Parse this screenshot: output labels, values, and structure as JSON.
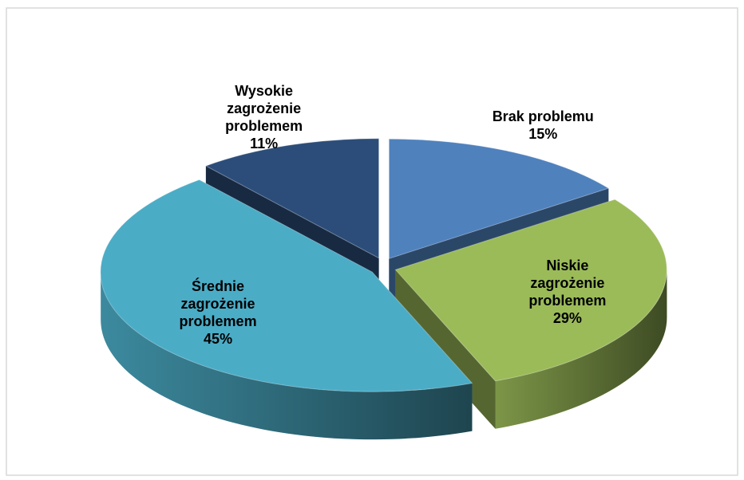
{
  "chart_data": {
    "type": "pie3d",
    "categories": [
      "Brak problemu",
      "Niskie zagrożenie problemem",
      "Średnie zagrożenie problemem",
      "Wysokie zagrożenie problemem"
    ],
    "values": [
      15,
      29,
      45,
      11
    ],
    "value_labels": [
      "15%",
      "29%",
      "45%",
      "11%"
    ],
    "colors": [
      "#4f81bd",
      "#9bbb59",
      "#4bacc6",
      "#2c4d79"
    ]
  }
}
